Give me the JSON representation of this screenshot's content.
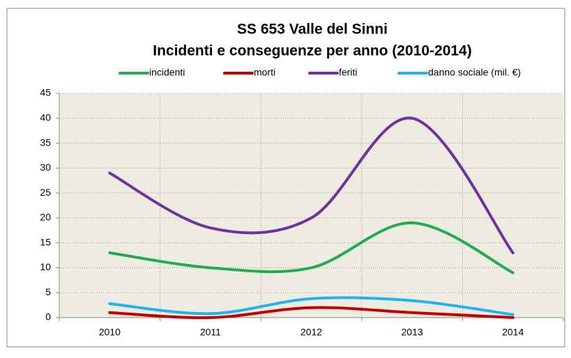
{
  "chart_data": {
    "type": "line",
    "title": "SS 653 Valle del Sinni",
    "subtitle": "Incidenti e conseguenze per anno (2010-2014)",
    "categories": [
      "2010",
      "2011",
      "2012",
      "2013",
      "2014"
    ],
    "series": [
      {
        "name": "incidenti",
        "color": "#21ac53",
        "values": [
          13,
          10,
          10,
          19,
          9
        ]
      },
      {
        "name": "morti",
        "color": "#c00000",
        "values": [
          1,
          0,
          2,
          1,
          0
        ]
      },
      {
        "name": "feriti",
        "color": "#7030a0",
        "values": [
          29,
          18,
          20,
          40,
          13
        ]
      },
      {
        "name": "danno sociale (mil. €)",
        "color": "#1fb4ef",
        "values": [
          2.8,
          0.8,
          3.8,
          3.4,
          0.6
        ]
      }
    ],
    "ylim": [
      0,
      45
    ],
    "yticks": [
      0,
      5,
      10,
      15,
      20,
      25,
      30,
      35,
      40,
      45
    ],
    "grid": true,
    "smooth": true,
    "legend": "top"
  }
}
